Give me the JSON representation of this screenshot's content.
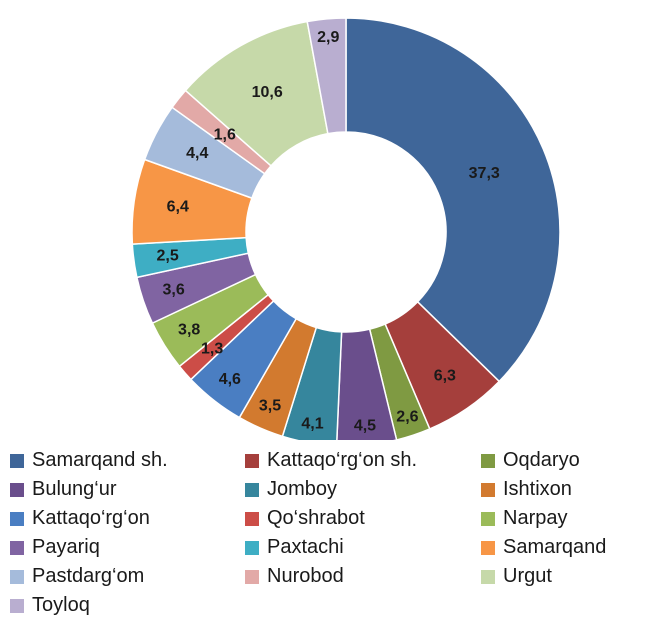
{
  "chart_data": {
    "type": "pie",
    "title": "",
    "donut": true,
    "categories": [
      "Samarqand sh.",
      "Kattaqo‘rg‘on sh.",
      "Oqdaryo",
      "Bulung‘ur",
      "Jomboy",
      "Ishtixon",
      "Kattaqo‘rg‘on",
      "Qo‘shrabot",
      "Narpay",
      "Payariq",
      "Paxtachi",
      "Samarqand",
      "Pastdarg‘om",
      "Nurobod",
      "Urgut",
      "Toyloq"
    ],
    "values": [
      37.3,
      6.3,
      2.6,
      4.5,
      4.1,
      3.5,
      4.6,
      1.3,
      3.8,
      3.6,
      2.5,
      6.4,
      4.4,
      1.6,
      10.6,
      2.9
    ],
    "value_labels": [
      "37,3",
      "6,3",
      "2,6",
      "4,5",
      "4,1",
      "3,5",
      "4,6",
      "1,3",
      "3,8",
      "3,6",
      "2,5",
      "6,4",
      "4,4",
      "1,6",
      "10,6",
      "2,9"
    ],
    "colors": [
      "#3f6699",
      "#a53f3c",
      "#7f9a42",
      "#6a4e8c",
      "#36869d",
      "#d27a2f",
      "#4a7ec2",
      "#cc4d47",
      "#9bbb59",
      "#8064a2",
      "#3eaec4",
      "#f79646",
      "#a5bbdb",
      "#e2a9a7",
      "#c6d9a9",
      "#b9aed0"
    ],
    "legend_position": "bottom"
  }
}
